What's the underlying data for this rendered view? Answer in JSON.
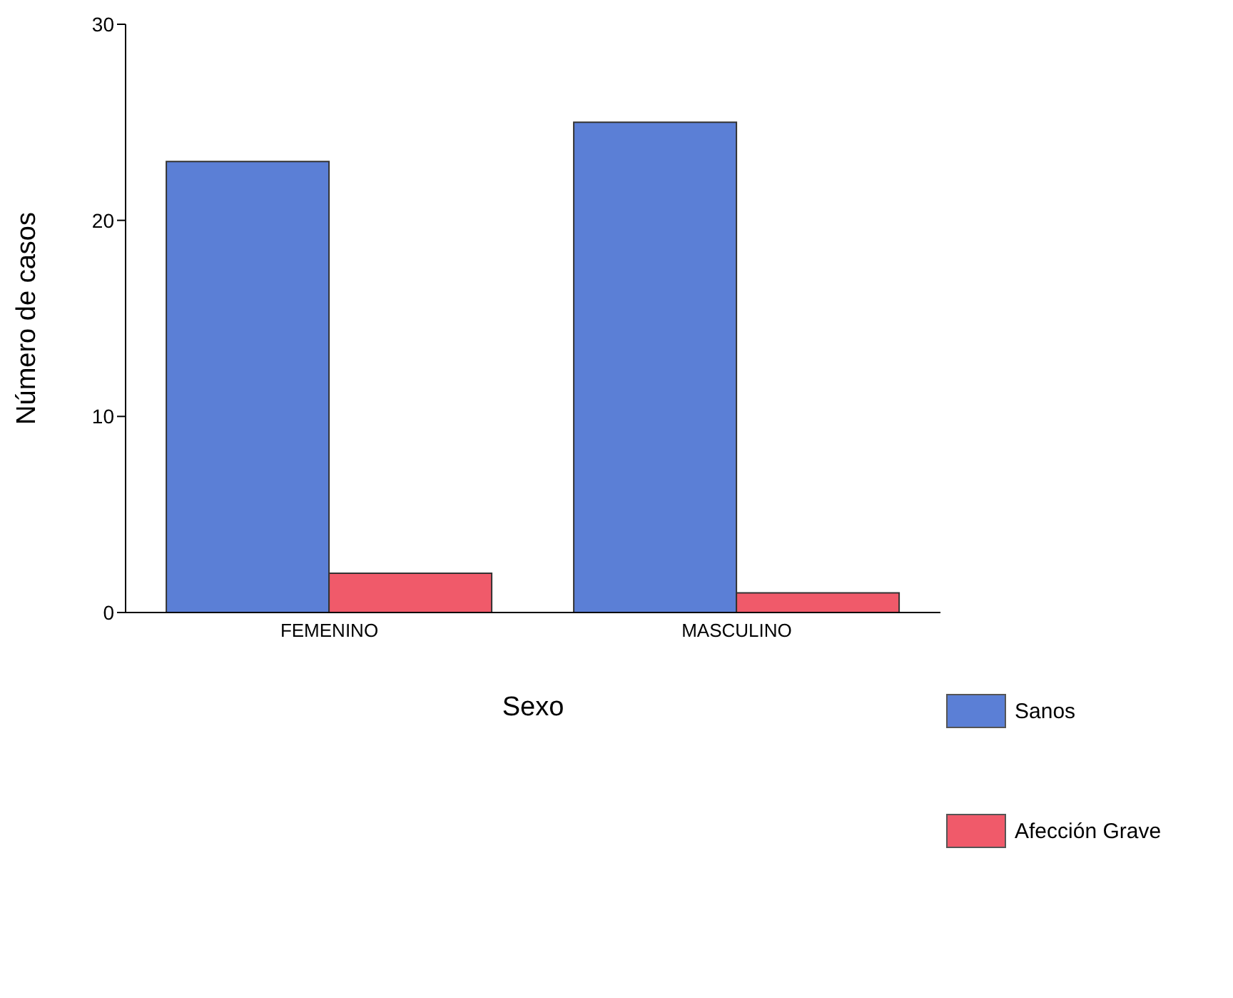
{
  "chart_data": {
    "type": "bar",
    "xlabel": "Sexo",
    "ylabel": "Número de casos",
    "categories": [
      "FEMENINO",
      "MASCULINO"
    ],
    "series": [
      {
        "name": "Sanos",
        "color": "#5b7fd6",
        "values": [
          23,
          25
        ]
      },
      {
        "name": "Afección Grave",
        "color": "#f05a6a",
        "values": [
          2,
          1
        ]
      }
    ],
    "ylim": [
      0,
      30
    ],
    "yticks": [
      0,
      10,
      20,
      30
    ],
    "grid": false,
    "legend": "bottom right"
  }
}
